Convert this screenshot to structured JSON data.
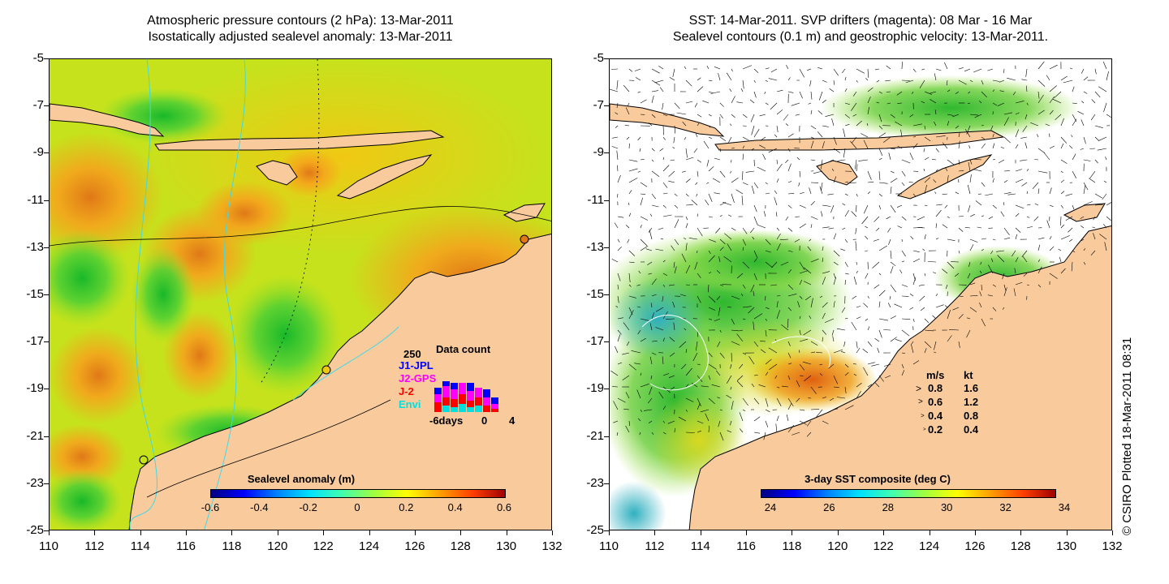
{
  "left_panel": {
    "title_line1": "Atmospheric pressure contours (2 hPa): 13-Mar-2011",
    "title_line2": "Isostatically adjusted sealevel anomaly: 13-Mar-2011",
    "colorbar_title": "Sealevel anomaly (m)",
    "colorbar_ticks": [
      "-0.6",
      "-0.4",
      "-0.2",
      "0",
      "0.2",
      "0.4",
      "0.6"
    ],
    "inset": {
      "title": "Data count",
      "max_label": "250",
      "series": [
        {
          "name": "J1-JPL",
          "color": "#0000ff"
        },
        {
          "name": "J2-GPS",
          "color": "#ff00ff"
        },
        {
          "name": "J-2",
          "color": "#ff0000"
        },
        {
          "name": "Envi",
          "color": "#00e0e0"
        }
      ],
      "x_labels": [
        "-6days",
        "0",
        "4"
      ]
    }
  },
  "right_panel": {
    "title_line1": "SST: 14-Mar-2011. SVP drifters (magenta): 08 Mar - 16 Mar",
    "title_line2": "Sealevel contours (0.1 m) and geostrophic velocity: 13-Mar-2011.",
    "colorbar_title": "3-day SST composite (deg C)",
    "colorbar_ticks": [
      "24",
      "26",
      "28",
      "30",
      "32",
      "34"
    ],
    "velocity_legend": {
      "header_ms": "m/s",
      "header_kt": "kt",
      "rows": [
        {
          "ms": "0.8",
          "kt": "1.6"
        },
        {
          "ms": "0.6",
          "kt": "1.2"
        },
        {
          "ms": "0.4",
          "kt": "0.8"
        },
        {
          "ms": "0.2",
          "kt": "0.4"
        }
      ]
    }
  },
  "axes": {
    "y_ticks": [
      "-5",
      "-7",
      "-9",
      "-11",
      "-13",
      "-15",
      "-17",
      "-19",
      "-21",
      "-23",
      "-25"
    ],
    "x_ticks": [
      "110",
      "112",
      "114",
      "116",
      "118",
      "120",
      "122",
      "124",
      "126",
      "128",
      "130",
      "132"
    ]
  },
  "copyright": "© CSIRO Plotted 18-Mar-2011 08:31",
  "colors": {
    "land": "#f9cb9c",
    "ocean_base": "#c8e81e",
    "sst_base": "#ffffff"
  }
}
